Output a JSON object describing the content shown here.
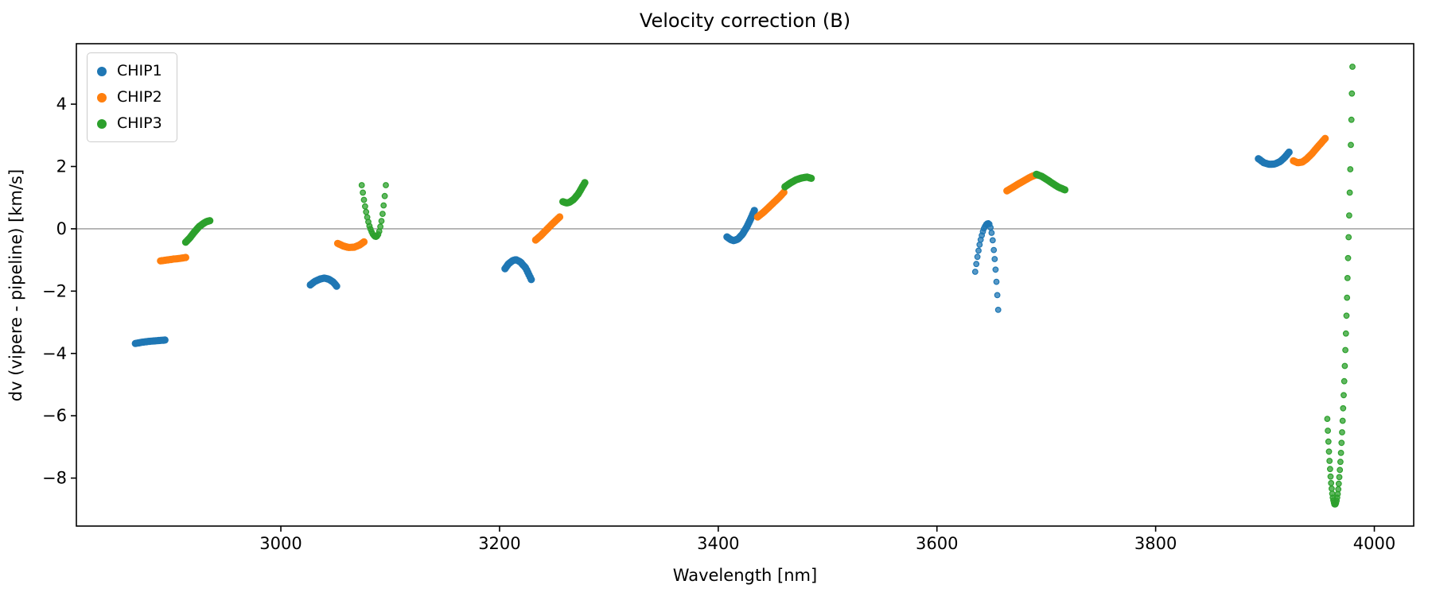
{
  "chart_data": {
    "type": "scatter",
    "title": "Velocity correction (B)",
    "xlabel": "Wavelength [nm]",
    "ylabel": "dv (vipere - pipeline) [km/s]",
    "xlim": [
      2813,
      4036
    ],
    "ylim": [
      -9.54,
      5.94
    ],
    "xticks": [
      3000,
      3200,
      3400,
      3600,
      3800,
      4000
    ],
    "yticks": [
      4,
      2,
      0,
      -2,
      -4,
      -6,
      -8
    ],
    "grid": false,
    "zero_line": true,
    "zero_line_color": "#808080",
    "legend_position": "upper-left",
    "series": [
      {
        "name": "CHIP1",
        "color": "#1f77b4",
        "segments": [
          {
            "style": "dense",
            "n": 20,
            "points": [
              [
                2867,
                -3.68
              ],
              [
                2873,
                -3.64
              ],
              [
                2880,
                -3.61
              ],
              [
                2887,
                -3.59
              ],
              [
                2894,
                -3.57
              ]
            ]
          },
          {
            "style": "dense",
            "n": 22,
            "points": [
              [
                3027,
                -1.8
              ],
              [
                3031,
                -1.69
              ],
              [
                3036,
                -1.61
              ],
              [
                3040,
                -1.58
              ],
              [
                3044,
                -1.62
              ],
              [
                3048,
                -1.71
              ],
              [
                3051,
                -1.84
              ]
            ]
          },
          {
            "style": "dense",
            "n": 24,
            "points": [
              [
                3205,
                -1.28
              ],
              [
                3208,
                -1.13
              ],
              [
                3212,
                -1.02
              ],
              [
                3215,
                -0.99
              ],
              [
                3219,
                -1.06
              ],
              [
                3224,
                -1.26
              ],
              [
                3229,
                -1.63
              ]
            ]
          },
          {
            "style": "dense",
            "n": 30,
            "points": [
              [
                3408,
                -0.26
              ],
              [
                3411,
                -0.34
              ],
              [
                3414,
                -0.38
              ],
              [
                3418,
                -0.33
              ],
              [
                3422,
                -0.18
              ],
              [
                3426,
                0.05
              ],
              [
                3430,
                0.34
              ],
              [
                3433,
                0.59
              ]
            ]
          },
          {
            "style": "dots",
            "points": [
              [
                3635,
                -1.38
              ],
              [
                3636,
                -1.13
              ],
              [
                3637,
                -0.9
              ],
              [
                3638,
                -0.7
              ],
              [
                3639,
                -0.51
              ],
              [
                3640,
                -0.35
              ],
              [
                3641,
                -0.21
              ],
              [
                3642,
                -0.09
              ],
              [
                3643,
                0.01
              ],
              [
                3644,
                0.08
              ],
              [
                3645,
                0.14
              ],
              [
                3646,
                0.17
              ],
              [
                3647,
                0.18
              ],
              [
                3648,
                0.15
              ],
              [
                3649,
                0.04
              ],
              [
                3650,
                -0.13
              ],
              [
                3651,
                -0.37
              ],
              [
                3652,
                -0.68
              ],
              [
                3652.8,
                -0.97
              ],
              [
                3653.6,
                -1.31
              ],
              [
                3654.4,
                -1.7
              ],
              [
                3655.2,
                -2.13
              ],
              [
                3656,
                -2.6
              ]
            ]
          },
          {
            "style": "dense",
            "n": 24,
            "points": [
              [
                3894,
                2.25
              ],
              [
                3899,
                2.12
              ],
              [
                3904,
                2.07
              ],
              [
                3909,
                2.08
              ],
              [
                3914,
                2.16
              ],
              [
                3918,
                2.29
              ],
              [
                3922,
                2.46
              ]
            ]
          }
        ]
      },
      {
        "name": "CHIP2",
        "color": "#ff7f0e",
        "segments": [
          {
            "style": "dense",
            "n": 18,
            "points": [
              [
                2890,
                -1.03
              ],
              [
                2896,
                -1.0
              ],
              [
                2902,
                -0.97
              ],
              [
                2908,
                -0.95
              ],
              [
                2913,
                -0.92
              ]
            ]
          },
          {
            "style": "dense",
            "n": 20,
            "points": [
              [
                3052,
                -0.47
              ],
              [
                3057,
                -0.55
              ],
              [
                3062,
                -0.6
              ],
              [
                3067,
                -0.59
              ],
              [
                3072,
                -0.52
              ],
              [
                3076,
                -0.42
              ]
            ]
          },
          {
            "style": "dense",
            "n": 20,
            "points": [
              [
                3233,
                -0.36
              ],
              [
                3238,
                -0.21
              ],
              [
                3243,
                -0.03
              ],
              [
                3248,
                0.15
              ],
              [
                3252,
                0.28
              ],
              [
                3255,
                0.38
              ]
            ]
          },
          {
            "style": "dense",
            "n": 22,
            "points": [
              [
                3436,
                0.38
              ],
              [
                3441,
                0.52
              ],
              [
                3446,
                0.68
              ],
              [
                3451,
                0.85
              ],
              [
                3456,
                1.02
              ],
              [
                3460,
                1.17
              ]
            ]
          },
          {
            "style": "dense",
            "n": 24,
            "points": [
              [
                3664,
                1.22
              ],
              [
                3669,
                1.32
              ],
              [
                3674,
                1.43
              ],
              [
                3679,
                1.53
              ],
              [
                3684,
                1.63
              ],
              [
                3688,
                1.7
              ],
              [
                3691,
                1.73
              ]
            ]
          },
          {
            "style": "dense",
            "n": 26,
            "points": [
              [
                3926,
                2.18
              ],
              [
                3930,
                2.12
              ],
              [
                3934,
                2.14
              ],
              [
                3938,
                2.24
              ],
              [
                3943,
                2.41
              ],
              [
                3948,
                2.62
              ],
              [
                3955,
                2.9
              ]
            ]
          }
        ]
      },
      {
        "name": "CHIP3",
        "color": "#2ca02c",
        "segments": [
          {
            "style": "dense",
            "n": 22,
            "points": [
              [
                2913,
                -0.43
              ],
              [
                2917,
                -0.28
              ],
              [
                2921,
                -0.1
              ],
              [
                2925,
                0.06
              ],
              [
                2929,
                0.17
              ],
              [
                2932,
                0.23
              ],
              [
                2935,
                0.26
              ]
            ]
          },
          {
            "style": "dots",
            "points": [
              [
                3074,
                1.4
              ],
              [
                3075,
                1.16
              ],
              [
                3076,
                0.93
              ],
              [
                3077,
                0.72
              ],
              [
                3078,
                0.54
              ],
              [
                3079,
                0.37
              ],
              [
                3080,
                0.22
              ],
              [
                3081,
                0.09
              ],
              [
                3082,
                -0.01
              ],
              [
                3083,
                -0.1
              ],
              [
                3084,
                -0.17
              ],
              [
                3085,
                -0.22
              ],
              [
                3086,
                -0.25
              ],
              [
                3087,
                -0.26
              ],
              [
                3088,
                -0.24
              ],
              [
                3089,
                -0.18
              ],
              [
                3090,
                -0.08
              ],
              [
                3091,
                0.07
              ],
              [
                3092,
                0.25
              ],
              [
                3093,
                0.48
              ],
              [
                3094,
                0.75
              ],
              [
                3095,
                1.05
              ],
              [
                3096,
                1.4
              ]
            ]
          },
          {
            "style": "dense",
            "n": 20,
            "points": [
              [
                3258,
                0.87
              ],
              [
                3261,
                0.83
              ],
              [
                3264,
                0.85
              ],
              [
                3268,
                0.95
              ],
              [
                3272,
                1.12
              ],
              [
                3275,
                1.3
              ],
              [
                3278,
                1.48
              ]
            ]
          },
          {
            "style": "dense",
            "n": 20,
            "points": [
              [
                3461,
                1.35
              ],
              [
                3466,
                1.47
              ],
              [
                3471,
                1.57
              ],
              [
                3476,
                1.63
              ],
              [
                3481,
                1.66
              ],
              [
                3485,
                1.62
              ]
            ]
          },
          {
            "style": "dense",
            "n": 22,
            "points": [
              [
                3691,
                1.75
              ],
              [
                3696,
                1.68
              ],
              [
                3701,
                1.57
              ],
              [
                3706,
                1.45
              ],
              [
                3711,
                1.34
              ],
              [
                3717,
                1.25
              ]
            ]
          },
          {
            "style": "dots",
            "points": [
              [
                3957,
                -6.1
              ],
              [
                3957.5,
                -6.48
              ],
              [
                3958,
                -6.83
              ],
              [
                3958.5,
                -7.15
              ],
              [
                3959,
                -7.45
              ],
              [
                3959.5,
                -7.71
              ],
              [
                3960,
                -7.95
              ],
              [
                3960.5,
                -8.16
              ],
              [
                3961,
                -8.34
              ],
              [
                3961.5,
                -8.5
              ],
              [
                3962,
                -8.63
              ],
              [
                3962.5,
                -8.72
              ],
              [
                3963,
                -8.79
              ],
              [
                3963.5,
                -8.84
              ],
              [
                3964,
                -8.85
              ],
              [
                3964.5,
                -8.84
              ],
              [
                3965,
                -8.8
              ],
              [
                3965.5,
                -8.73
              ],
              [
                3966,
                -8.63
              ],
              [
                3966.5,
                -8.51
              ],
              [
                3967,
                -8.36
              ],
              [
                3967.5,
                -8.18
              ],
              [
                3968,
                -7.97
              ],
              [
                3968.5,
                -7.74
              ],
              [
                3969,
                -7.48
              ],
              [
                3969.5,
                -7.19
              ],
              [
                3970,
                -6.87
              ],
              [
                3970.5,
                -6.53
              ],
              [
                3971,
                -6.16
              ],
              [
                3971.5,
                -5.76
              ],
              [
                3972,
                -5.34
              ],
              [
                3972.5,
                -4.89
              ],
              [
                3973,
                -4.4
              ],
              [
                3973.5,
                -3.89
              ],
              [
                3974,
                -3.36
              ],
              [
                3974.5,
                -2.79
              ],
              [
                3975,
                -2.21
              ],
              [
                3975.5,
                -1.58
              ],
              [
                3976,
                -0.94
              ],
              [
                3976.5,
                -0.27
              ],
              [
                3977,
                0.43
              ],
              [
                3977.5,
                1.16
              ],
              [
                3978,
                1.91
              ],
              [
                3978.5,
                2.69
              ],
              [
                3979,
                3.5
              ],
              [
                3979.5,
                4.34
              ],
              [
                3980,
                5.2
              ]
            ]
          }
        ]
      }
    ]
  }
}
